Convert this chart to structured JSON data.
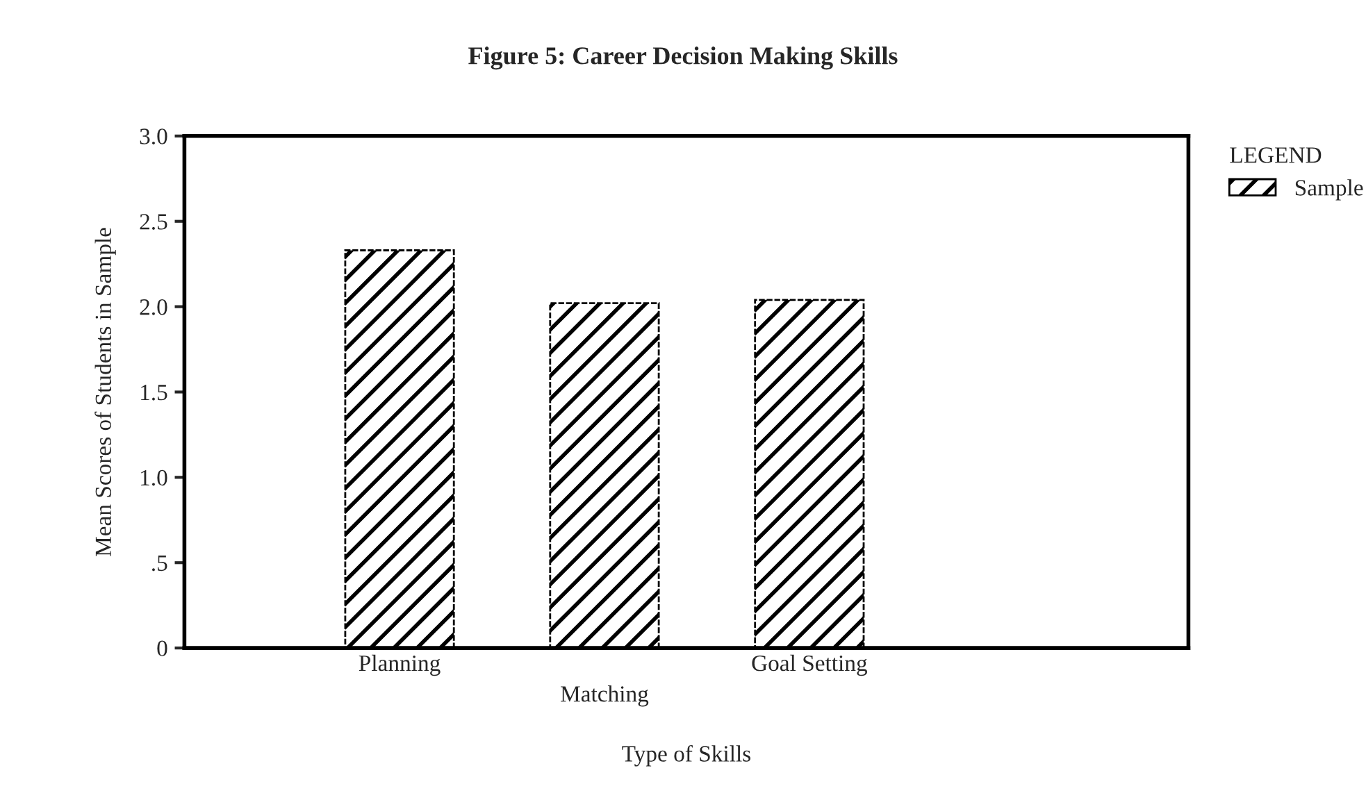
{
  "chart_data": {
    "type": "bar",
    "title": "Figure 5: Career Decision Making Skills",
    "xlabel": "Type of Skills",
    "ylabel": "Mean Scores of Students in Sample",
    "categories": [
      "Planning",
      "Matching",
      "Goal Setting"
    ],
    "series": [
      {
        "name": "Sample",
        "color": "#000000",
        "values": [
          2.33,
          2.02,
          2.04
        ]
      }
    ],
    "legend_title": "LEGEND",
    "legend": "top right",
    "ylim": [
      0,
      3.0
    ],
    "yticks": [
      0,
      {
        "value": 0.5,
        "label": ".5"
      },
      {
        "value": 1.0,
        "label": "1.0"
      },
      {
        "value": 1.5,
        "label": "1.5"
      },
      {
        "value": 2.0,
        "label": "2.0"
      },
      {
        "value": 2.5,
        "label": "2.5"
      },
      {
        "value": 3.0,
        "label": "3.0"
      }
    ],
    "grid": false
  }
}
